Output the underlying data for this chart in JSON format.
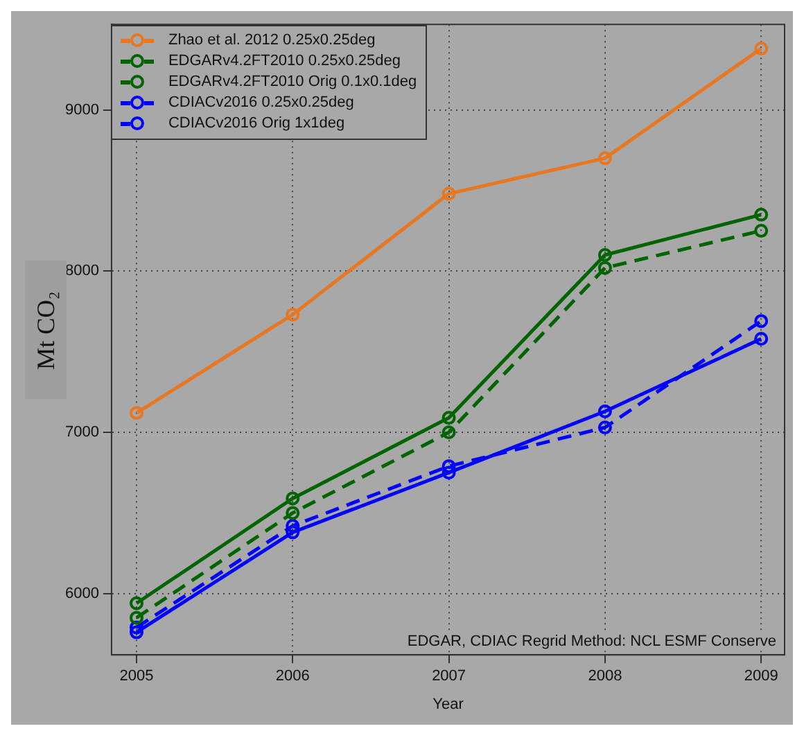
{
  "chart_data": {
    "type": "line",
    "xlabel": "Year",
    "ylabel": "Mt CO₂",
    "x": [
      2005,
      2006,
      2007,
      2008,
      2009
    ],
    "series": [
      {
        "name": "Zhao et al. 2012 0.25x0.25deg",
        "color": "#e87722",
        "line_style": "solid",
        "values": [
          7120,
          7730,
          8480,
          8700,
          9380
        ]
      },
      {
        "name": "EDGARv4.2FT2010 0.25x0.25deg",
        "color": "#006400",
        "line_style": "solid",
        "values": [
          5940,
          6590,
          7090,
          8100,
          8350
        ]
      },
      {
        "name": "EDGARv4.2FT2010 Orig 0.1x0.1deg",
        "color": "#006400",
        "line_style": "dashed",
        "values": [
          5850,
          6500,
          7000,
          8020,
          8250
        ]
      },
      {
        "name": "CDIACv2016 0.25x0.25deg",
        "color": "#0000ff",
        "line_style": "solid",
        "values": [
          5760,
          6380,
          6750,
          7130,
          7580
        ]
      },
      {
        "name": "CDIACv2016 Orig 1x1deg",
        "color": "#0000ff",
        "line_style": "dashed",
        "values": [
          5790,
          6420,
          6790,
          7030,
          7690
        ]
      }
    ],
    "xlim": [
      2004.84,
      2009.15
    ],
    "xticks": [
      2005,
      2006,
      2007,
      2008,
      2009
    ],
    "ylim": [
      5620,
      9530
    ],
    "yticks": [
      6000,
      7000,
      8000,
      9000
    ],
    "grid": true,
    "legend": "top left",
    "marker": "circle",
    "annotations": [
      "EDGAR, CDIAC Regrid Method: NCL ESMF Conserve"
    ]
  }
}
